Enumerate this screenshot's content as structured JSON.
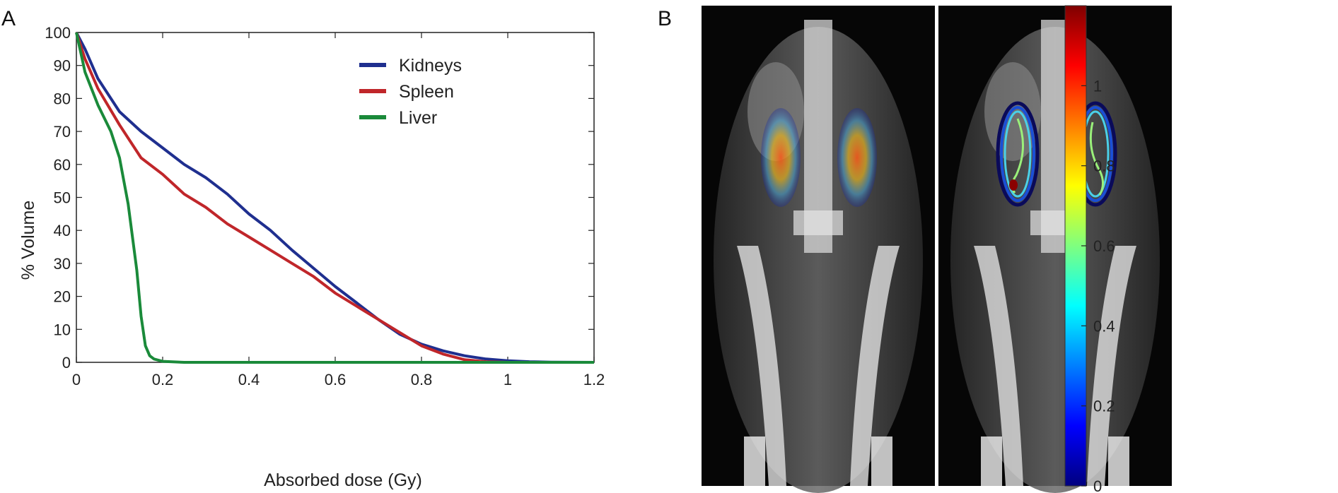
{
  "panel_labels": {
    "a": "A",
    "b": "B"
  },
  "chart_data": [
    {
      "type": "line",
      "panel": "A",
      "title": "",
      "xlabel": "Absorbed dose (Gy)",
      "ylabel": "% Volume",
      "xlim": [
        0,
        1.2
      ],
      "ylim": [
        0,
        100
      ],
      "xticks": [
        "0",
        "0.2",
        "0.4",
        "0.6",
        "0.8",
        "1",
        "1.2"
      ],
      "yticks": [
        "0",
        "10",
        "20",
        "30",
        "40",
        "50",
        "60",
        "70",
        "80",
        "90",
        "100"
      ],
      "grid": false,
      "legend_position": "top-right",
      "series": [
        {
          "name": "Kidneys",
          "color": "#1f2f8f",
          "points": [
            [
              0,
              100
            ],
            [
              0.02,
              95
            ],
            [
              0.05,
              86
            ],
            [
              0.1,
              76
            ],
            [
              0.15,
              70
            ],
            [
              0.2,
              65
            ],
            [
              0.25,
              60
            ],
            [
              0.3,
              56
            ],
            [
              0.35,
              51
            ],
            [
              0.4,
              45
            ],
            [
              0.45,
              40
            ],
            [
              0.5,
              34
            ],
            [
              0.55,
              28.5
            ],
            [
              0.6,
              23
            ],
            [
              0.65,
              18
            ],
            [
              0.7,
              13
            ],
            [
              0.75,
              8.5
            ],
            [
              0.8,
              5.5
            ],
            [
              0.85,
              3.5
            ],
            [
              0.9,
              2
            ],
            [
              0.95,
              1
            ],
            [
              1.0,
              0.5
            ],
            [
              1.05,
              0.2
            ],
            [
              1.1,
              0.05
            ],
            [
              1.2,
              0
            ]
          ]
        },
        {
          "name": "Spleen",
          "color": "#c0262a",
          "points": [
            [
              0,
              100
            ],
            [
              0.02,
              92
            ],
            [
              0.05,
              83
            ],
            [
              0.1,
              72
            ],
            [
              0.15,
              62
            ],
            [
              0.2,
              57
            ],
            [
              0.25,
              51
            ],
            [
              0.3,
              47
            ],
            [
              0.35,
              42
            ],
            [
              0.4,
              38
            ],
            [
              0.45,
              34
            ],
            [
              0.5,
              30
            ],
            [
              0.55,
              26
            ],
            [
              0.6,
              21
            ],
            [
              0.65,
              17
            ],
            [
              0.7,
              13
            ],
            [
              0.75,
              9
            ],
            [
              0.8,
              5
            ],
            [
              0.85,
              2.5
            ],
            [
              0.9,
              0.8
            ],
            [
              0.95,
              0.2
            ],
            [
              1.0,
              0
            ],
            [
              1.2,
              0
            ]
          ]
        },
        {
          "name": "Liver",
          "color": "#1a8a3a",
          "points": [
            [
              0,
              100
            ],
            [
              0.02,
              88
            ],
            [
              0.05,
              78
            ],
            [
              0.08,
              70
            ],
            [
              0.1,
              62
            ],
            [
              0.12,
              48
            ],
            [
              0.14,
              28
            ],
            [
              0.15,
              14
            ],
            [
              0.16,
              5
            ],
            [
              0.17,
              2
            ],
            [
              0.18,
              1
            ],
            [
              0.2,
              0.3
            ],
            [
              0.25,
              0
            ],
            [
              1.2,
              0
            ]
          ]
        }
      ]
    },
    {
      "type": "colorbar",
      "panel": "B",
      "ticks": [
        "0",
        "0.2",
        "0.4",
        "0.6",
        "0.8",
        "1"
      ],
      "range": [
        0,
        1.2
      ],
      "colormap": "jet",
      "colors": [
        "#00007f",
        "#0000ff",
        "#007fff",
        "#00ffff",
        "#7fff7f",
        "#ffff00",
        "#ff7f00",
        "#ff0000",
        "#7f0000"
      ]
    }
  ],
  "images": [
    {
      "name": "ct-coronal-dose-overlay",
      "icon": "ct-scan-icon"
    },
    {
      "name": "ct-coronal-isodose-contours",
      "icon": "ct-scan-icon"
    }
  ]
}
